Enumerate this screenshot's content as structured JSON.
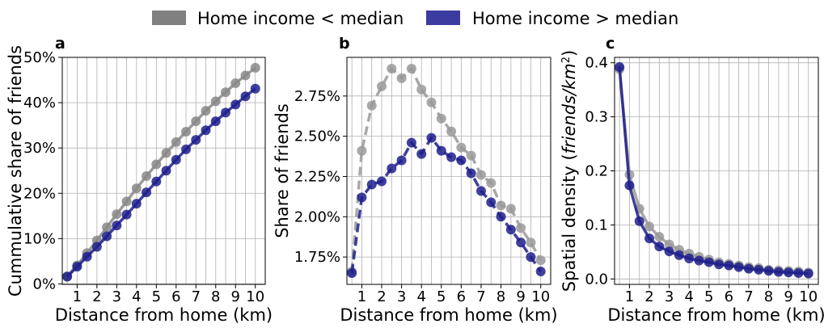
{
  "legend": {
    "placement": "top-center",
    "entries": [
      {
        "label": "Home income < median",
        "color": "#808080"
      },
      {
        "label": "Home income > median",
        "color": "#3b3ba0"
      }
    ]
  },
  "chart_data": [
    {
      "panel_label": "a",
      "type": "line",
      "xlabel": "Distance from home (km)",
      "ylabel": "Cummulative share of friends",
      "xlim": [
        0.25,
        10.5
      ],
      "ylim": [
        -0.1,
        50
      ],
      "xticks": [
        1,
        2,
        3,
        4,
        5,
        6,
        7,
        8,
        9,
        10
      ],
      "xtick_labels": [
        "1",
        "2",
        "3",
        "4",
        "5",
        "6",
        "7",
        "8",
        "9",
        "10"
      ],
      "yticks": [
        0,
        10,
        20,
        30,
        40,
        50
      ],
      "ytick_labels": [
        "0%",
        "10%",
        "20%",
        "30%",
        "40%",
        "50%"
      ],
      "grid": true,
      "x": [
        0.5,
        1,
        1.5,
        2,
        2.5,
        3,
        3.5,
        4,
        4.5,
        5,
        5.5,
        6,
        6.5,
        7,
        7.5,
        8,
        8.5,
        9,
        9.5,
        10
      ],
      "series": [
        {
          "name": "Home income < median",
          "color": "#888888",
          "dashed": false,
          "values": [
            1.7,
            4.1,
            6.8,
            9.6,
            12.5,
            15.4,
            18.2,
            21.1,
            23.8,
            26.4,
            28.9,
            31.3,
            33.6,
            35.9,
            38.2,
            40.3,
            42.3,
            44.3,
            46.0,
            47.7
          ]
        },
        {
          "name": "Home income > median",
          "color": "#1e1e8c",
          "dashed": false,
          "values": [
            1.6,
            3.8,
            6.0,
            8.2,
            10.5,
            12.9,
            15.3,
            17.7,
            20.2,
            22.6,
            25.0,
            27.4,
            29.7,
            31.8,
            33.9,
            35.9,
            37.8,
            39.6,
            41.4,
            43.1
          ]
        }
      ]
    },
    {
      "panel_label": "b",
      "type": "line",
      "xlabel": "Distance from home (km)",
      "ylabel": "Share of friends",
      "xlim": [
        0.25,
        10.5
      ],
      "ylim": [
        1.58,
        2.99
      ],
      "xticks": [
        1,
        2,
        3,
        4,
        5,
        6,
        7,
        8,
        9,
        10
      ],
      "xtick_labels": [
        "1",
        "2",
        "3",
        "4",
        "5",
        "6",
        "7",
        "8",
        "9",
        "10"
      ],
      "yticks": [
        1.75,
        2.0,
        2.25,
        2.5,
        2.75
      ],
      "ytick_labels": [
        "1.75%",
        "2.00%",
        "2.25%",
        "2.50%",
        "2.75%"
      ],
      "grid": true,
      "x": [
        0.5,
        1,
        1.5,
        2,
        2.5,
        3,
        3.5,
        4,
        4.5,
        5,
        5.5,
        6,
        6.5,
        7,
        7.5,
        8,
        8.5,
        9,
        9.5,
        10
      ],
      "series": [
        {
          "name": "Home income < median",
          "color": "#999999",
          "dashed": true,
          "values": [
            1.66,
            2.41,
            2.69,
            2.81,
            2.92,
            2.86,
            2.92,
            2.79,
            2.71,
            2.61,
            2.53,
            2.43,
            2.38,
            2.26,
            2.21,
            2.07,
            2.05,
            1.93,
            1.84,
            1.73
          ]
        },
        {
          "name": "Home income > median",
          "color": "#1e1e8c",
          "dashed": true,
          "values": [
            1.65,
            2.12,
            2.2,
            2.22,
            2.3,
            2.35,
            2.46,
            2.39,
            2.49,
            2.41,
            2.37,
            2.35,
            2.27,
            2.16,
            2.09,
            2.0,
            1.92,
            1.84,
            1.75,
            1.66
          ]
        }
      ]
    },
    {
      "panel_label": "c",
      "type": "line",
      "xlabel": "Distance from home (km)",
      "ylabel_prefix": "Spatial density (",
      "ylabel_italic": "friends/km",
      "ylabel_sup": "2",
      "ylabel_suffix": ")",
      "xlim": [
        0.25,
        10.5
      ],
      "ylim": [
        -0.01,
        0.41
      ],
      "xticks": [
        1,
        2,
        3,
        4,
        5,
        6,
        7,
        8,
        9,
        10
      ],
      "xtick_labels": [
        "1",
        "2",
        "3",
        "4",
        "5",
        "6",
        "7",
        "8",
        "9",
        "10"
      ],
      "yticks": [
        0.0,
        0.1,
        0.2,
        0.3,
        0.4
      ],
      "ytick_labels": [
        "0.0",
        "0.1",
        "0.2",
        "0.3",
        "0.4"
      ],
      "grid": true,
      "x": [
        0.5,
        1,
        1.5,
        2,
        2.5,
        3,
        3.5,
        4,
        4.5,
        5,
        5.5,
        6,
        6.5,
        7,
        7.5,
        8,
        8.5,
        9,
        9.5,
        10
      ],
      "series": [
        {
          "name": "Home income < median",
          "color": "#999999",
          "dashed": false,
          "values": [
            0.388,
            0.193,
            0.13,
            0.097,
            0.078,
            0.064,
            0.054,
            0.047,
            0.041,
            0.036,
            0.031,
            0.028,
            0.025,
            0.022,
            0.02,
            0.017,
            0.016,
            0.015,
            0.014,
            0.012
          ]
        },
        {
          "name": "Home income > median",
          "color": "#1e1e8c",
          "dashed": false,
          "values": [
            0.392,
            0.173,
            0.107,
            0.075,
            0.06,
            0.051,
            0.044,
            0.038,
            0.034,
            0.031,
            0.027,
            0.025,
            0.022,
            0.019,
            0.017,
            0.015,
            0.013,
            0.012,
            0.011,
            0.01
          ]
        }
      ]
    }
  ]
}
